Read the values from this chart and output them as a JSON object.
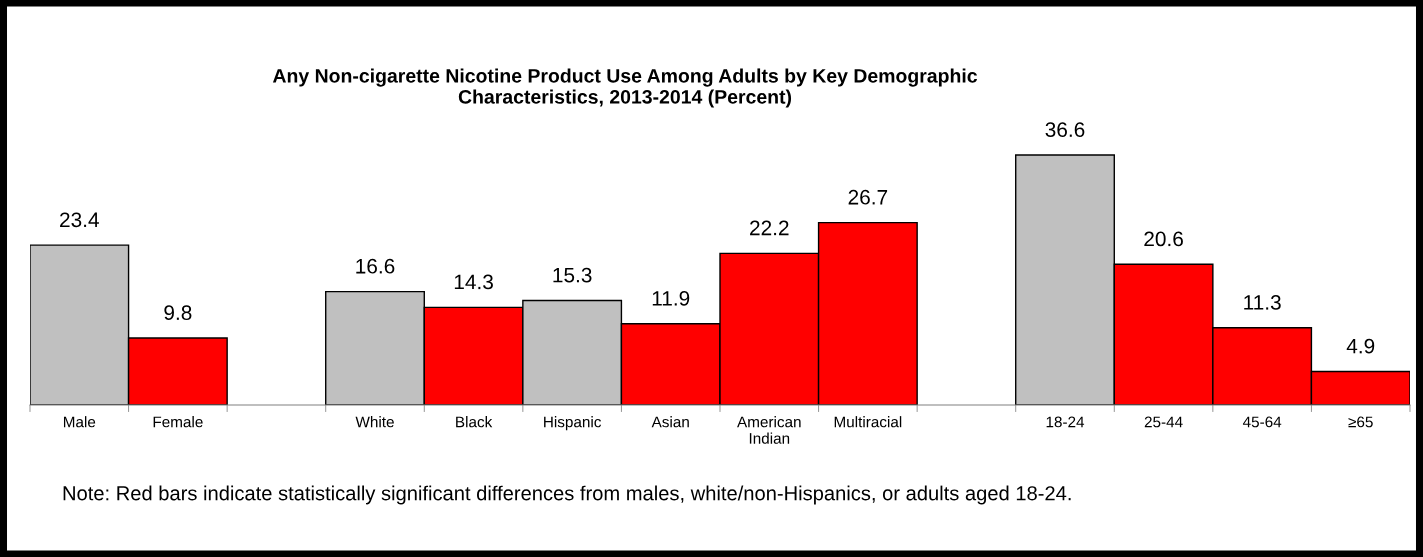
{
  "chart_data": {
    "type": "bar",
    "title": "Any Non-cigarette Nicotine Product Use Among Adults by Key Demographic\nCharacteristics, 2013-2014 (Percent)",
    "categories": [
      "Male",
      "Female",
      null,
      "White",
      "Black",
      "Hispanic",
      "Asian",
      "American\nIndian",
      "Multiracial",
      null,
      "18-24",
      "25-44",
      "45-64",
      "≥65"
    ],
    "values": [
      23.4,
      9.8,
      null,
      16.6,
      14.3,
      15.3,
      11.9,
      22.2,
      26.7,
      null,
      36.6,
      20.6,
      11.3,
      4.9
    ],
    "colors": [
      "#c0c0c0",
      "#ff0000",
      null,
      "#c0c0c0",
      "#ff0000",
      "#c0c0c0",
      "#ff0000",
      "#ff0000",
      "#ff0000",
      null,
      "#c0c0c0",
      "#ff0000",
      "#ff0000",
      "#ff0000"
    ],
    "data_labels": true,
    "grid": false,
    "legend": false,
    "annotations": [
      "Note: Red bars indicate statistically significant differences from males, white/non-Hispanics, or adults aged 18-24."
    ]
  }
}
